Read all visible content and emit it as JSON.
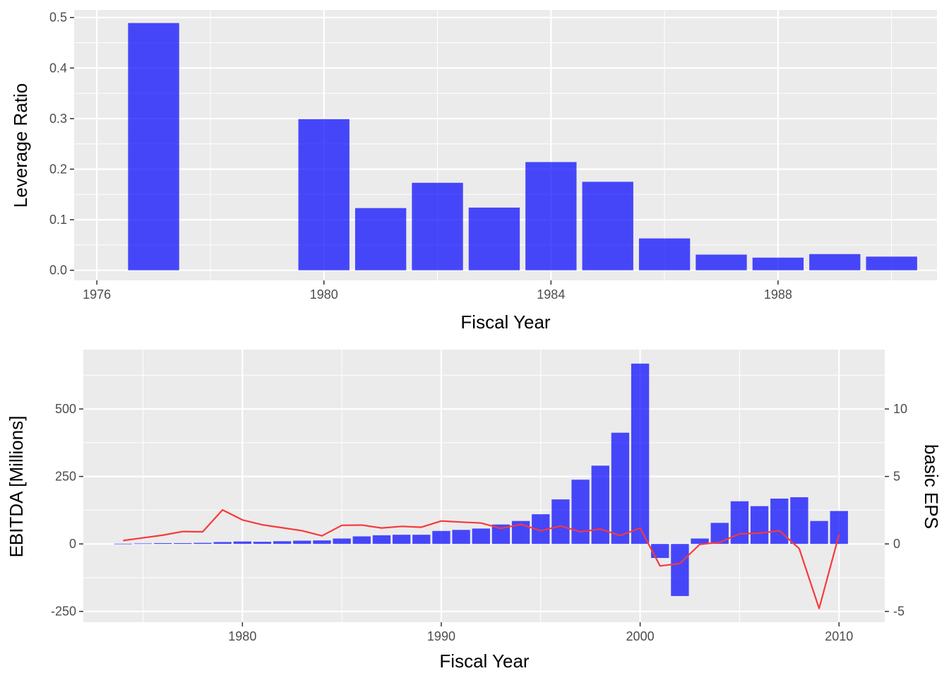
{
  "chart_data": [
    {
      "type": "bar",
      "xlabel": "Fiscal Year",
      "ylabel": "Leverage Ratio",
      "xlim": [
        1975.6,
        1990.8
      ],
      "ylim": [
        -0.02,
        0.515
      ],
      "x_ticks": [
        1976,
        1980,
        1984,
        1988
      ],
      "x_minor": [
        1978,
        1982,
        1986,
        1990
      ],
      "y_ticks": [
        0.0,
        0.1,
        0.2,
        0.3,
        0.4,
        0.5
      ],
      "y_tick_labels": [
        "0.0",
        "0.1",
        "0.2",
        "0.3",
        "0.4",
        "0.5"
      ],
      "grid": true,
      "bar_color": "#0000ff",
      "bar_opacity": 0.7,
      "bar_width": 0.9,
      "x": [
        1977,
        1980,
        1981,
        1982,
        1983,
        1984,
        1985,
        1986,
        1987,
        1988,
        1989,
        1990
      ],
      "values": [
        0.489,
        0.299,
        0.123,
        0.173,
        0.124,
        0.214,
        0.175,
        0.063,
        0.031,
        0.025,
        0.032,
        0.027
      ]
    },
    {
      "type": "bar+line",
      "xlabel": "Fiscal Year",
      "ylabel": "EBITDA [Millions]",
      "y2label": "basic EPS",
      "xlim": [
        1972.0,
        2012.3
      ],
      "ylim": [
        -290,
        720
      ],
      "y2_scale": 50,
      "x_ticks": [
        1980,
        1990,
        2000,
        2010
      ],
      "x_minor": [
        1975,
        1985,
        1995,
        2005
      ],
      "y_ticks": [
        -250,
        0,
        250,
        500
      ],
      "y_tick_labels": [
        "-250",
        "0",
        "250",
        "500"
      ],
      "y_minor": [
        -125,
        125,
        375,
        625
      ],
      "y2_ticks": [
        -5,
        0,
        5,
        10
      ],
      "y2_tick_labels": [
        "-5",
        "0",
        "5",
        "10"
      ],
      "grid": true,
      "bar_color": "#0000ff",
      "bar_opacity": 0.7,
      "line_color": "#f8393b",
      "bar_width": 0.9,
      "series": [
        {
          "name": "EBITDA",
          "type": "bar",
          "x": [
            1974,
            1975,
            1976,
            1977,
            1978,
            1979,
            1980,
            1981,
            1982,
            1983,
            1984,
            1985,
            1986,
            1987,
            1988,
            1989,
            1990,
            1991,
            1992,
            1993,
            1994,
            1995,
            1996,
            1997,
            1998,
            1999,
            2000,
            2001,
            2002,
            2003,
            2004,
            2005,
            2006,
            2007,
            2008,
            2009,
            2010
          ],
          "values": [
            1,
            2,
            3,
            3,
            4,
            7,
            9,
            8,
            10,
            12,
            13,
            20,
            28,
            32,
            34,
            34,
            48,
            52,
            57,
            72,
            85,
            110,
            165,
            238,
            290,
            412,
            668,
            -52,
            -193,
            20,
            78,
            158,
            140,
            168,
            173,
            85,
            122
          ]
        },
        {
          "name": "basic EPS",
          "type": "line",
          "x": [
            1974,
            1975,
            1976,
            1977,
            1978,
            1979,
            1980,
            1981,
            1982,
            1983,
            1984,
            1985,
            1986,
            1987,
            1988,
            1989,
            1990,
            1991,
            1992,
            1993,
            1994,
            1995,
            1996,
            1997,
            1998,
            1999,
            2000,
            2001,
            2002,
            2003,
            2004,
            2005,
            2006,
            2007,
            2008,
            2009,
            2010
          ],
          "values": [
            0.25,
            0.45,
            0.65,
            0.92,
            0.9,
            2.52,
            1.78,
            1.42,
            1.2,
            0.98,
            0.6,
            1.38,
            1.4,
            1.18,
            1.3,
            1.24,
            1.7,
            1.62,
            1.55,
            1.15,
            1.45,
            0.98,
            1.33,
            0.9,
            1.1,
            0.62,
            1.18,
            -1.63,
            -1.45,
            -0.03,
            0.12,
            0.75,
            0.8,
            0.98,
            -0.35,
            -4.78,
            0.68
          ]
        }
      ]
    }
  ]
}
